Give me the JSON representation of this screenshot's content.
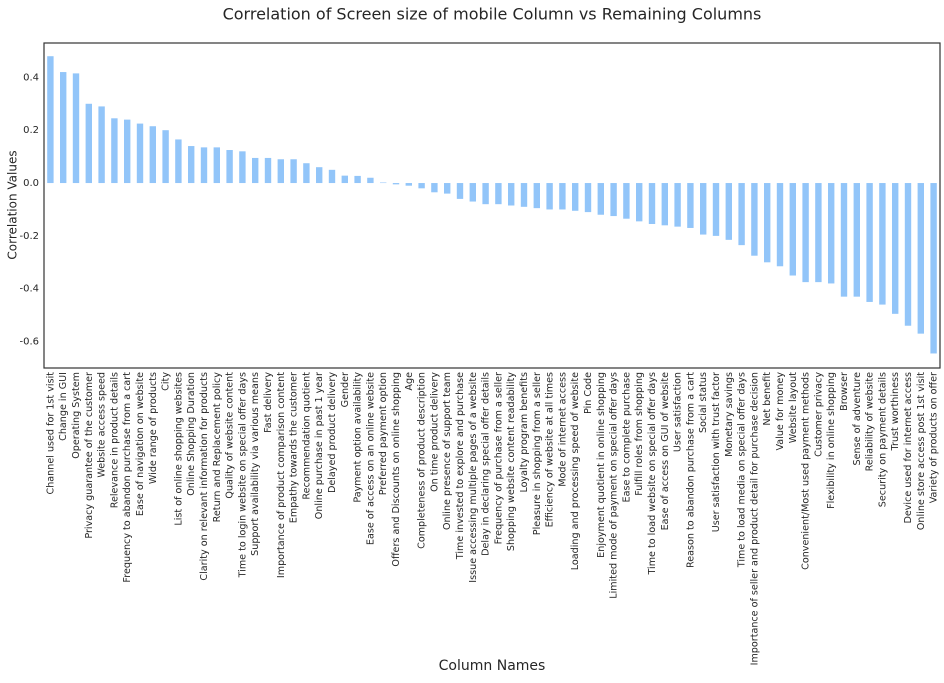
{
  "chart_data": {
    "type": "bar",
    "title": "Correlation of Screen size of mobile Column vs Remaining Columns",
    "xlabel": "Column Names",
    "ylabel": "Correlation Values",
    "color": "#92c5f9",
    "categories": [
      "Channel used for 1st visit",
      "Change in GUI",
      "Operating System",
      "Privacy guarantee of the customer",
      "Website access speed",
      "Relevance in product details",
      "Frequency to abandon purchase from a cart",
      "Ease of navigation on website",
      "Wide range of products",
      "City",
      "List of online shopping websites",
      "Online Shopping Duration",
      "Clarity on relevant information for products",
      "Return and Replacement policy",
      "Quality of website content",
      "Time to login website on special offer days",
      "Support availability via various means",
      "Fast delivery",
      "Importance of product comparison content",
      "Empathy towards the customer",
      "Recommendation quotient",
      "Online purchase in past 1 year",
      "Delayed product delivery",
      "Gender",
      "Payment option availability",
      "Ease of access on an online website",
      "Preferred payment option",
      "Offers and Discounts on online shopping",
      "Age",
      "Completeness of product description",
      "On time product delivery",
      "Online presence of support team",
      "Time invested to explore and purchase",
      "Issue accessing multiple pages of a website",
      "Delay in declaring special offer details",
      "Frequency of purchase from a seller",
      "Shopping website content readability",
      "Loyalty program benefits",
      "Pleasure in shopping from a seller",
      "Efficiency of website at all times",
      "Mode of internet access",
      "Loading and processing speed of website",
      "Pin Code",
      "Enjoyment quotient in online shopping",
      "Limited mode of payment on special offer days",
      "Ease to complete purchase",
      "Fulfill roles from shopping",
      "Time to load website on special offer days",
      "Ease of access on GUI of website",
      "User satisfaction",
      "Reason to abandon purchase from a cart",
      "Social status",
      "User satisfaction with trust factor",
      "Monetary savings",
      "Time to load media on special offer days",
      "Importance of seller and product detail for purchase decision",
      "Net benefit",
      "Value for money",
      "Website layout",
      "Convenient/Most used payment methods",
      "Customer privacy",
      "Flexibility in online shopping",
      "Browser",
      "Sense of adventure",
      "Reliability of website",
      "Security on payment details",
      "Trust worthiness",
      "Device used for internet access",
      "Online store access post 1st visit",
      "Variety of products on offer"
    ],
    "values": [
      0.48,
      0.42,
      0.415,
      0.3,
      0.29,
      0.245,
      0.24,
      0.225,
      0.215,
      0.2,
      0.165,
      0.14,
      0.135,
      0.135,
      0.125,
      0.12,
      0.095,
      0.095,
      0.09,
      0.09,
      0.075,
      0.06,
      0.05,
      0.028,
      0.027,
      0.02,
      0.002,
      -0.005,
      -0.01,
      -0.02,
      -0.035,
      -0.04,
      -0.06,
      -0.07,
      -0.08,
      -0.08,
      -0.085,
      -0.09,
      -0.095,
      -0.1,
      -0.1,
      -0.105,
      -0.11,
      -0.12,
      -0.125,
      -0.135,
      -0.145,
      -0.155,
      -0.16,
      -0.165,
      -0.17,
      -0.195,
      -0.2,
      -0.215,
      -0.235,
      -0.275,
      -0.3,
      -0.315,
      -0.35,
      -0.375,
      -0.375,
      -0.38,
      -0.43,
      -0.43,
      -0.45,
      -0.46,
      -0.495,
      -0.54,
      -0.57,
      -0.645
    ],
    "ylim": [
      -0.7,
      0.53
    ],
    "yticks": [
      -0.6,
      -0.4,
      -0.2,
      {
        "value": 0,
        "label": "0.0"
      },
      0.2,
      0.4
    ]
  }
}
